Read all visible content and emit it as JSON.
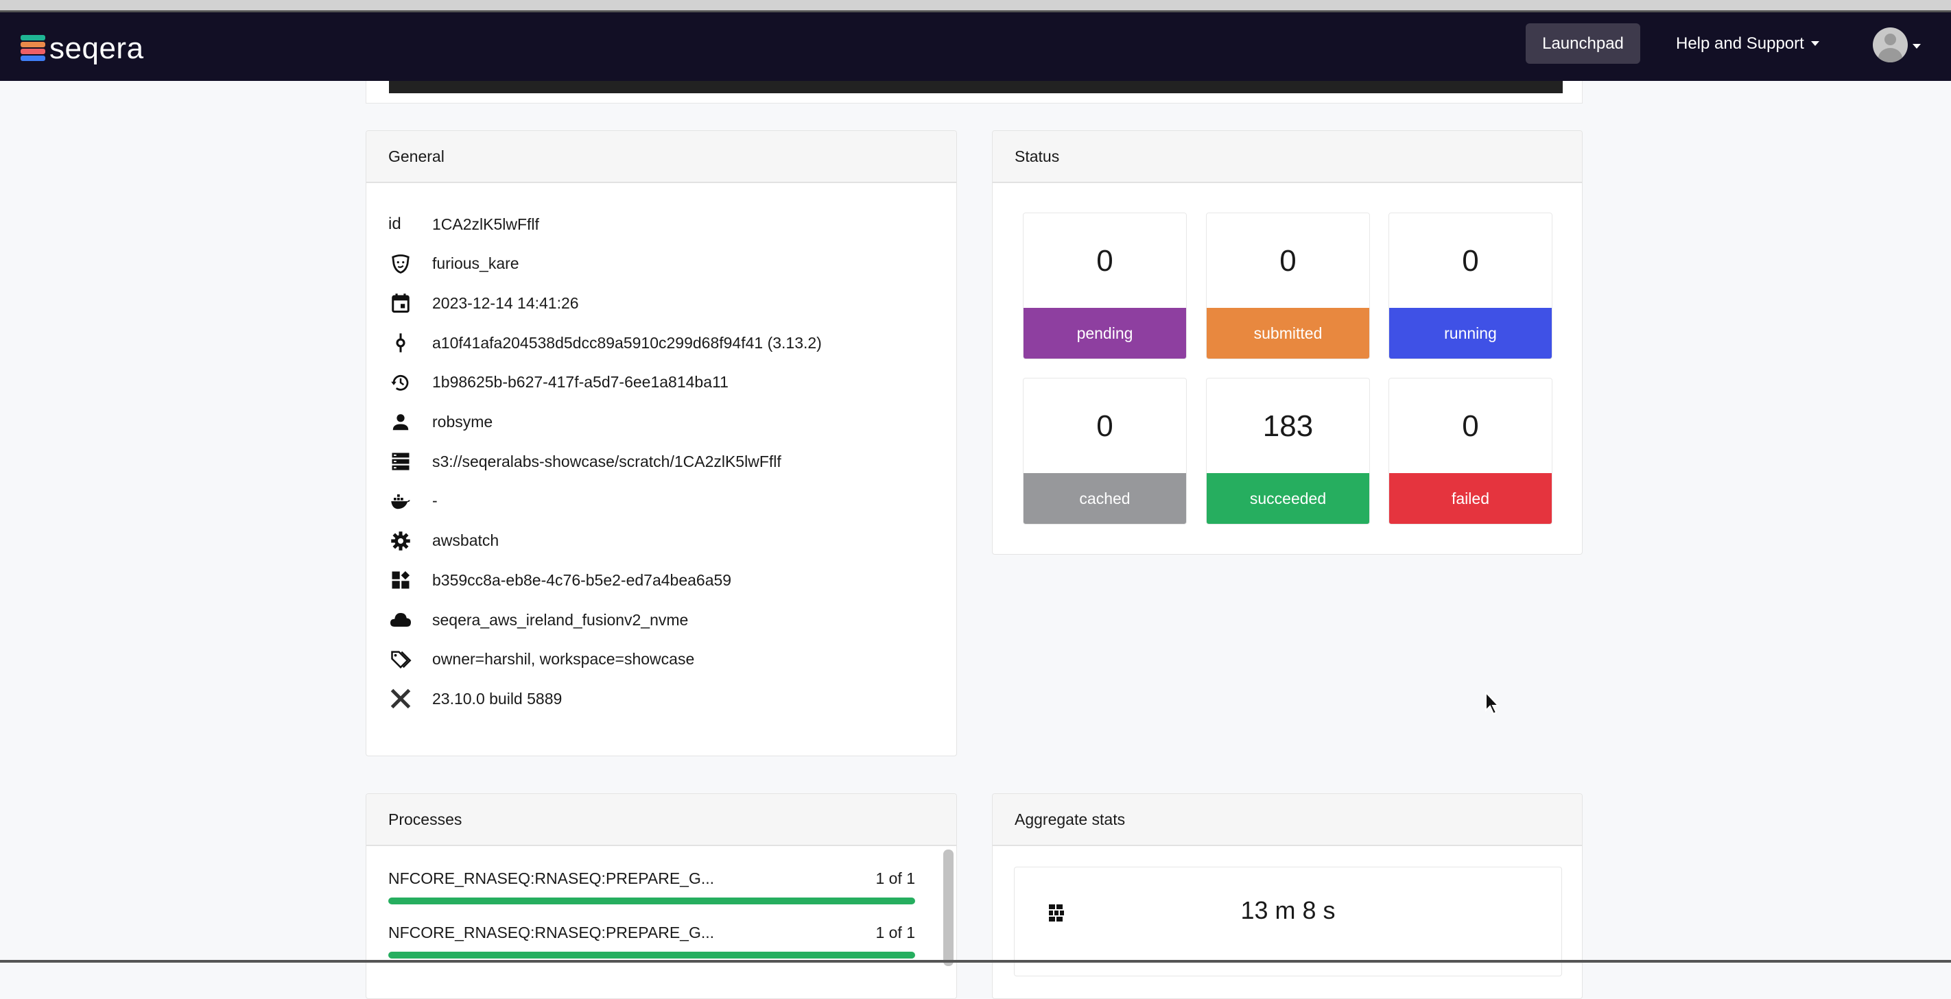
{
  "nav": {
    "brand": "seqera",
    "launchpad": "Launchpad",
    "help": "Help and Support"
  },
  "general": {
    "title": "General",
    "rows": [
      {
        "icon": "id-label",
        "label": "id",
        "value": "1CA2zlK5lwFflf"
      },
      {
        "icon": "mask-icon",
        "value": "furious_kare"
      },
      {
        "icon": "calendar-icon",
        "value": "2023-12-14 14:41:26"
      },
      {
        "icon": "commit-icon",
        "value": "a10f41afa204538d5dcc89a5910c299d68f94f41 (3.13.2)"
      },
      {
        "icon": "history-icon",
        "value": "1b98625b-b627-417f-a5d7-6ee1a814ba11"
      },
      {
        "icon": "user-icon",
        "value": "robsyme"
      },
      {
        "icon": "storage-icon",
        "value": "s3://seqeralabs-showcase/scratch/1CA2zlK5lwFflf"
      },
      {
        "icon": "docker-icon",
        "value": "-"
      },
      {
        "icon": "gear-icon",
        "value": "awsbatch"
      },
      {
        "icon": "widgets-icon",
        "value": "b359cc8a-eb8e-4c76-b5e2-ed7a4bea6a59"
      },
      {
        "icon": "cloud-icon",
        "value": "seqera_aws_ireland_fusionv2_nvme"
      },
      {
        "icon": "tags-icon",
        "value": "owner=harshil, workspace=showcase"
      },
      {
        "icon": "nextflow-icon",
        "value": "23.10.0 build 5889"
      }
    ]
  },
  "status": {
    "title": "Status",
    "tiles": [
      {
        "count": "0",
        "label": "pending",
        "color": "#8e3fa0"
      },
      {
        "count": "0",
        "label": "submitted",
        "color": "#e8883f"
      },
      {
        "count": "0",
        "label": "running",
        "color": "#3f51e6"
      },
      {
        "count": "0",
        "label": "cached",
        "color": "#97989b"
      },
      {
        "count": "183",
        "label": "succeeded",
        "color": "#26ae5f"
      },
      {
        "count": "0",
        "label": "failed",
        "color": "#e5343e"
      }
    ]
  },
  "processes": {
    "title": "Processes",
    "items": [
      {
        "name": "NFCORE_RNASEQ:RNASEQ:PREPARE_G...",
        "count": "1 of 1",
        "progress": 1.0
      },
      {
        "name": "NFCORE_RNASEQ:RNASEQ:PREPARE_G...",
        "count": "1 of 1",
        "progress": 1.0
      }
    ]
  },
  "aggregate": {
    "title": "Aggregate stats",
    "wall_time": "13 m 8 s"
  }
}
